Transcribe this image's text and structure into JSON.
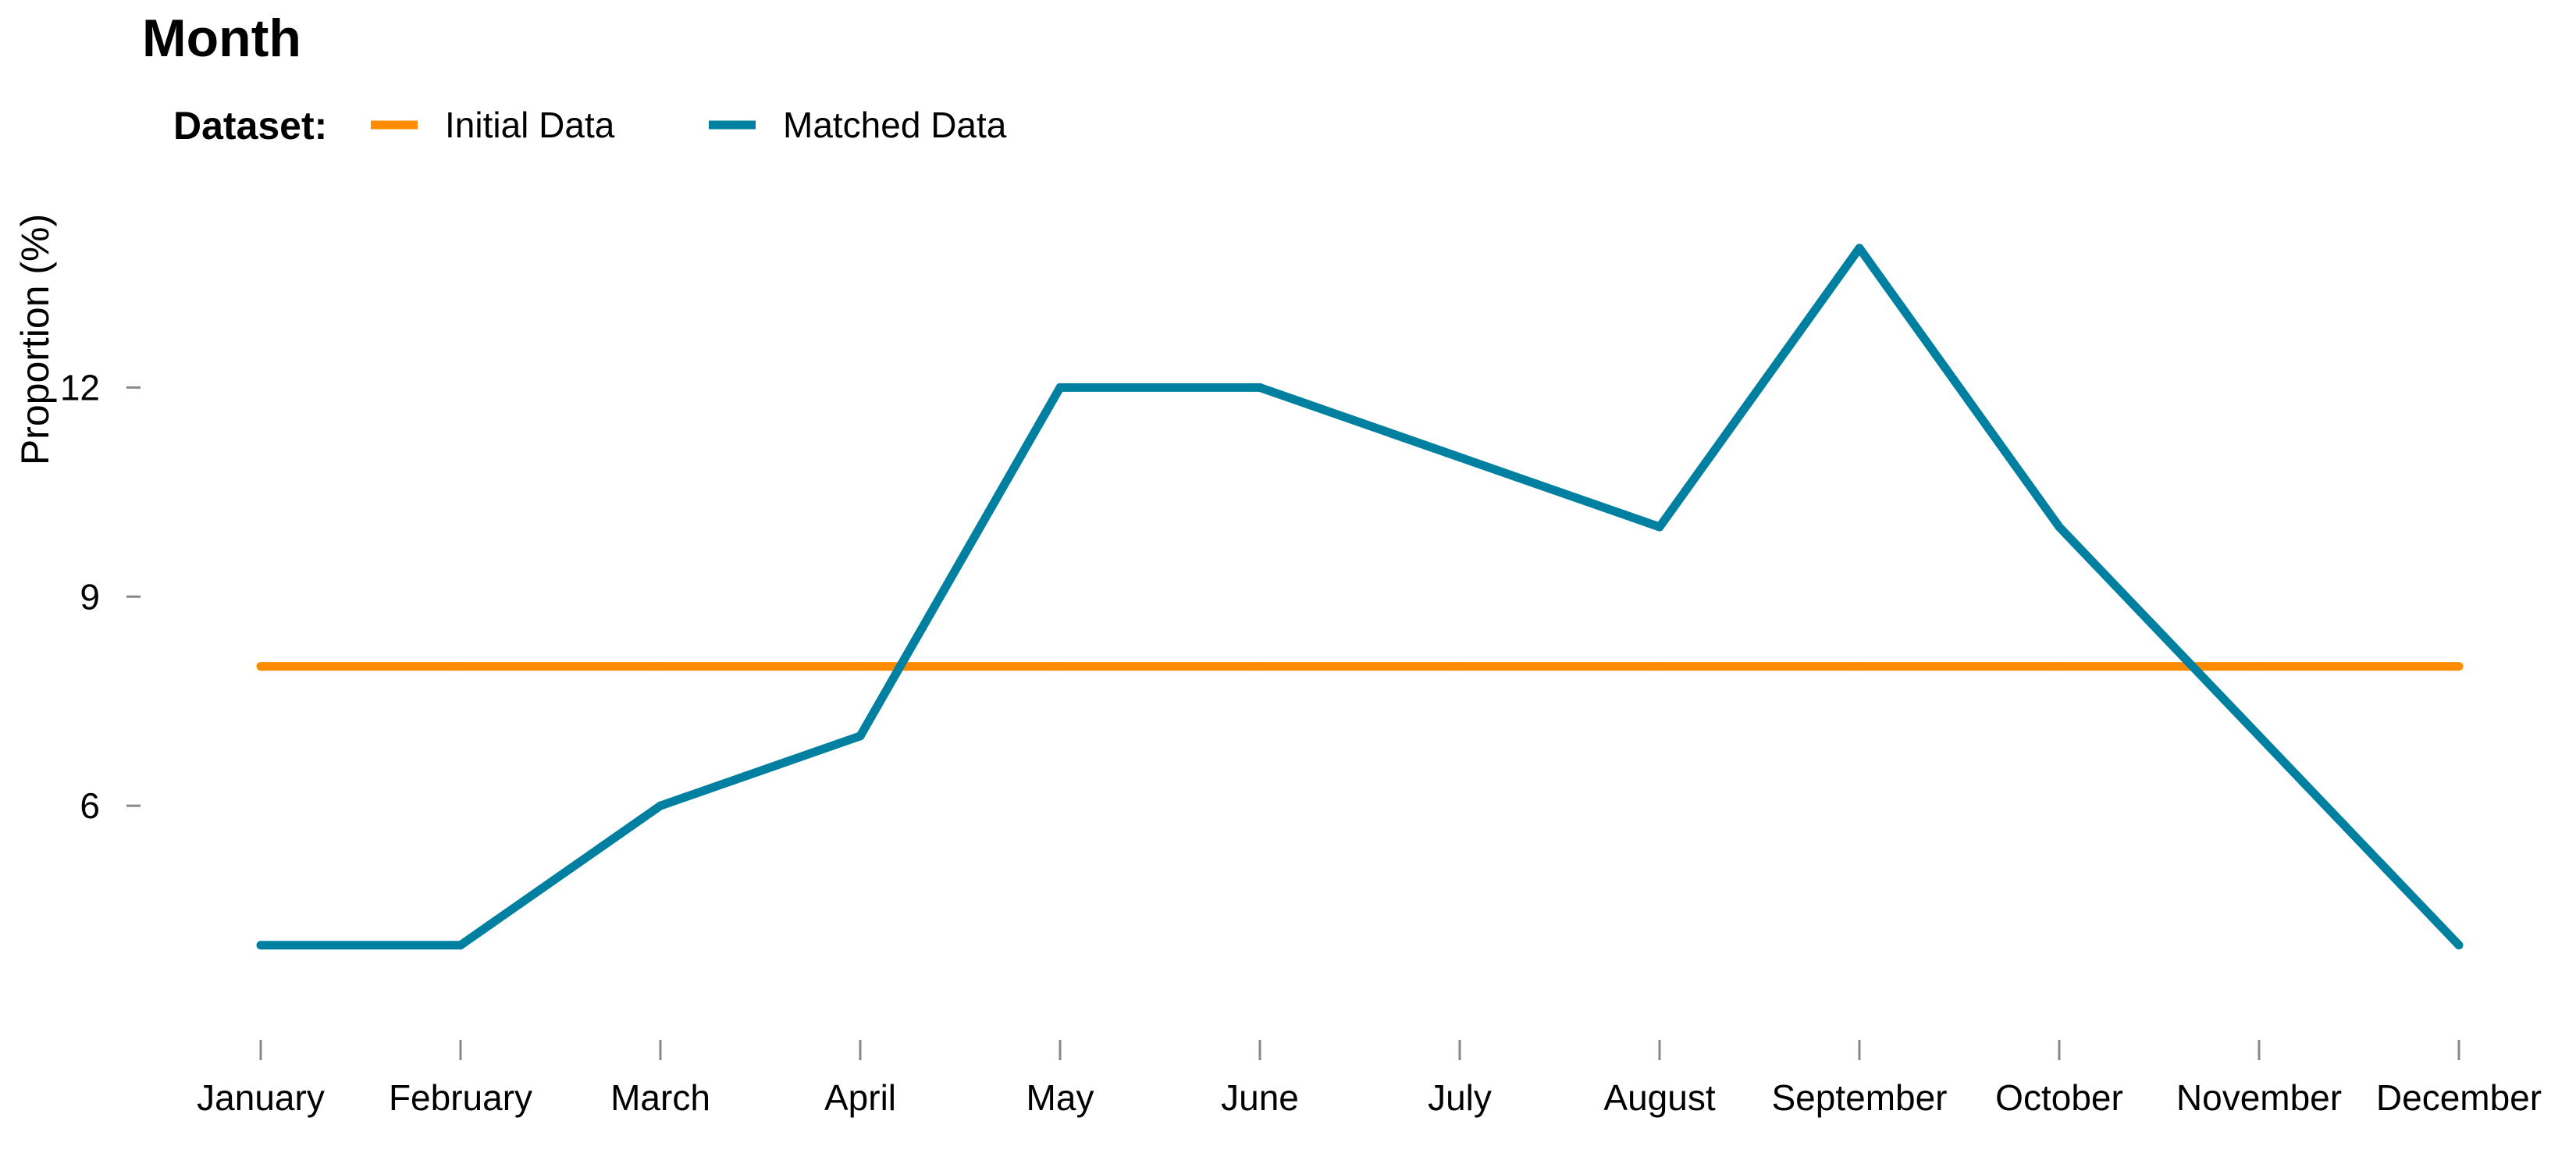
{
  "chart_data": {
    "type": "line",
    "title": "Month",
    "xlabel": "",
    "ylabel": "Proportion (%)",
    "legend": {
      "title": "Dataset:",
      "position": "top-left"
    },
    "categories": [
      "January",
      "February",
      "March",
      "April",
      "May",
      "June",
      "July",
      "August",
      "September",
      "October",
      "November",
      "December"
    ],
    "yticks": [
      6,
      9,
      12
    ],
    "ylim": [
      3.0,
      14.2
    ],
    "grid": false,
    "series": [
      {
        "name": "Initial Data",
        "color": "#FF8C00",
        "values": [
          8,
          8,
          8,
          8,
          8,
          8,
          8,
          8,
          8,
          8,
          8,
          8
        ]
      },
      {
        "name": "Matched Data",
        "color": "#0080A0",
        "values": [
          4,
          4,
          6,
          7,
          12,
          12,
          11,
          10,
          14,
          10,
          7,
          4
        ]
      }
    ]
  }
}
